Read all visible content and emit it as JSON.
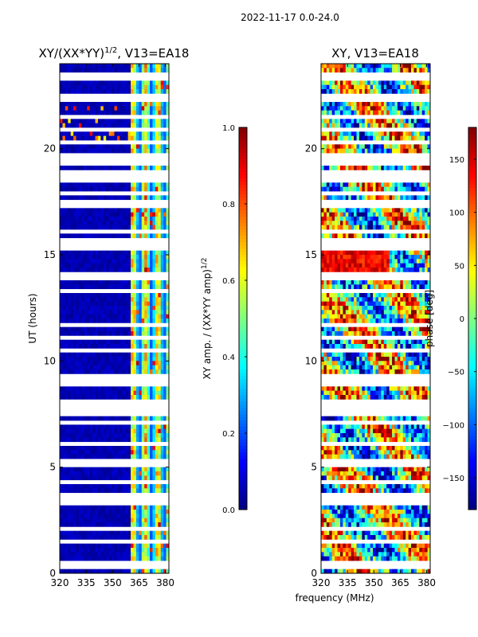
{
  "suptitle": "2022-11-17 0.0-24.0",
  "chart_data": [
    {
      "type": "heatmap",
      "title": "XY/(XX*YY)",
      "title_exponent": "1/2",
      "title_suffix": ", V13=EA18",
      "xlabel": "",
      "ylabel": "UT (hours)",
      "xlim": [
        320,
        382
      ],
      "ylim": [
        0,
        24
      ],
      "xticks": [
        "320",
        "335",
        "350",
        "365",
        "380"
      ],
      "xtick_values": [
        320,
        335,
        350,
        365,
        380
      ],
      "yticks": [
        "0",
        "5",
        "10",
        "15",
        "20"
      ],
      "ytick_values": [
        0,
        5,
        10,
        15,
        20
      ],
      "colorbar": {
        "label": "XY amp. / (XX*YY amp)",
        "label_exponent": "1/2",
        "range": [
          0.0,
          1.0
        ],
        "ticks": [
          "0.0",
          "0.2",
          "0.4",
          "0.6",
          "0.8",
          "1.0"
        ],
        "tick_values": [
          0.0,
          0.2,
          0.4,
          0.6,
          0.8,
          1.0
        ],
        "colormap": "jet"
      },
      "description_values": {
        "low_band_level_320_360MHz": 0.02,
        "high_band_level_360_382MHz": 0.45,
        "high_band_peak": 0.75
      }
    },
    {
      "type": "heatmap",
      "title": "XY, V13=EA18",
      "xlabel": "frequency (MHz)",
      "ylabel": "",
      "xlim": [
        320,
        382
      ],
      "ylim": [
        0,
        24
      ],
      "xticks": [
        "320",
        "335",
        "350",
        "365",
        "380"
      ],
      "xtick_values": [
        320,
        335,
        350,
        365,
        380
      ],
      "yticks": [
        "0",
        "5",
        "10",
        "15",
        "20"
      ],
      "ytick_values": [
        0,
        5,
        10,
        15,
        20
      ],
      "colorbar": {
        "label": "phase [deg]",
        "range": [
          -180,
          180
        ],
        "ticks": [
          "−150",
          "−100",
          "−50",
          "0",
          "50",
          "100",
          "150"
        ],
        "tick_values": [
          -150,
          -100,
          -50,
          0,
          50,
          100,
          150
        ],
        "colormap": "jet"
      },
      "description_values": {
        "phase_14_16h_deg": 140,
        "phase_range_deg": [
          -180,
          180
        ]
      }
    }
  ],
  "flagged_hours": [
    0.25,
    0.45,
    1.4,
    1.5,
    2.1,
    2.4,
    2.6,
    3.3,
    3.45,
    3.55,
    3.65,
    4.3,
    5.1,
    5.3,
    6.1,
    6.8,
    7.1,
    7.55,
    7.75,
    7.85,
    8.0,
    8.1,
    8.9,
    9.05,
    9.15,
    9.25,
    9.6,
    10.0,
    10.2,
    10.5,
    11.1,
    11.7,
    11.8,
    12.4,
    12.8,
    13.3,
    13.8,
    13.9,
    14.05,
    15.3,
    15.45,
    15.6,
    15.75,
    16.1,
    16.8,
    17.0,
    17.25,
    17.45,
    17.9,
    18.5,
    18.7,
    18.85,
    19.3,
    19.5,
    19.7,
    20.3,
    20.9,
    21.2,
    21.5,
    22.0,
    22.3,
    22.5,
    22.8,
    23.3,
    23.55
  ]
}
